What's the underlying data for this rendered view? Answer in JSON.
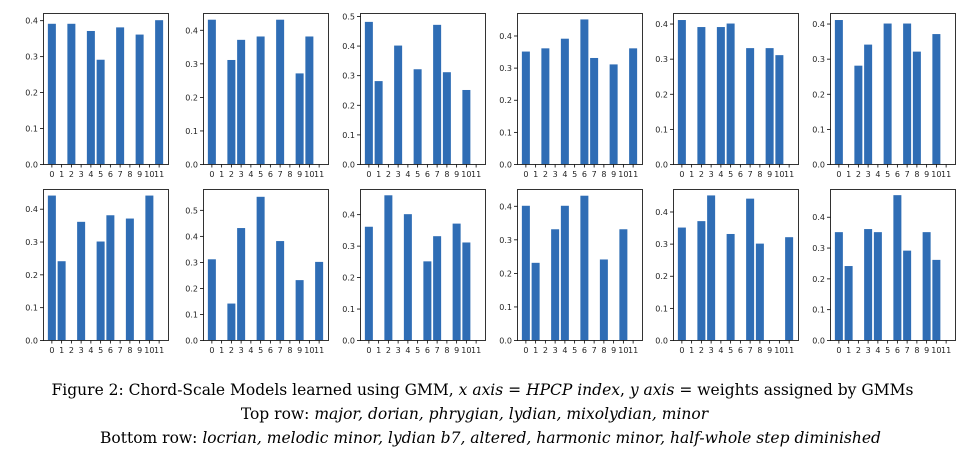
{
  "chart_data": [
    {
      "type": "bar",
      "categories": [
        "0",
        "1",
        "2",
        "3",
        "4",
        "5",
        "6",
        "7",
        "8",
        "9",
        "10",
        "11"
      ],
      "values": [
        0.39,
        0,
        0.39,
        0,
        0.37,
        0.29,
        0,
        0.38,
        0,
        0.36,
        0,
        0.4
      ],
      "ylim": [
        0,
        0.42
      ],
      "yticks": [
        "0.0",
        "0.1",
        "0.2",
        "0.3",
        "0.4"
      ],
      "grid": false
    },
    {
      "type": "bar",
      "categories": [
        "0",
        "1",
        "2",
        "3",
        "4",
        "5",
        "6",
        "7",
        "8",
        "9",
        "10",
        "11"
      ],
      "values": [
        0.43,
        0,
        0.31,
        0.37,
        0,
        0.38,
        0,
        0.43,
        0,
        0.27,
        0.38,
        0
      ],
      "ylim": [
        0,
        0.45
      ],
      "yticks": [
        "0.0",
        "0.1",
        "0.2",
        "0.3",
        "0.4"
      ],
      "grid": false
    },
    {
      "type": "bar",
      "categories": [
        "0",
        "1",
        "2",
        "3",
        "4",
        "5",
        "6",
        "7",
        "8",
        "9",
        "10",
        "11"
      ],
      "values": [
        0.48,
        0.28,
        0,
        0.4,
        0,
        0.32,
        0,
        0.47,
        0.31,
        0,
        0.25,
        0
      ],
      "ylim": [
        0,
        0.51
      ],
      "yticks": [
        "0.0",
        "0.1",
        "0.2",
        "0.3",
        "0.4",
        "0.5"
      ],
      "grid": false
    },
    {
      "type": "bar",
      "categories": [
        "0",
        "1",
        "2",
        "3",
        "4",
        "5",
        "6",
        "7",
        "8",
        "9",
        "10",
        "11"
      ],
      "values": [
        0.35,
        0,
        0.36,
        0,
        0.39,
        0,
        0.45,
        0.33,
        0,
        0.31,
        0,
        0.36
      ],
      "ylim": [
        0,
        0.47
      ],
      "yticks": [
        "0.0",
        "0.1",
        "0.2",
        "0.3",
        "0.4"
      ],
      "grid": false
    },
    {
      "type": "bar",
      "categories": [
        "0",
        "1",
        "2",
        "3",
        "4",
        "5",
        "6",
        "7",
        "8",
        "9",
        "10",
        "11"
      ],
      "values": [
        0.41,
        0,
        0.39,
        0,
        0.39,
        0.4,
        0,
        0.33,
        0,
        0.33,
        0.31,
        0
      ],
      "ylim": [
        0,
        0.43
      ],
      "yticks": [
        "0.0",
        "0.1",
        "0.2",
        "0.3",
        "0.4"
      ],
      "grid": false
    },
    {
      "type": "bar",
      "categories": [
        "0",
        "1",
        "2",
        "3",
        "4",
        "5",
        "6",
        "7",
        "8",
        "9",
        "10",
        "11"
      ],
      "values": [
        0.41,
        0,
        0.28,
        0.34,
        0,
        0.4,
        0,
        0.4,
        0.32,
        0,
        0.37,
        0
      ],
      "ylim": [
        0,
        0.43
      ],
      "yticks": [
        "0.0",
        "0.1",
        "0.2",
        "0.3",
        "0.4"
      ],
      "grid": false
    },
    {
      "type": "bar",
      "categories": [
        "0",
        "1",
        "2",
        "3",
        "4",
        "5",
        "6",
        "7",
        "8",
        "9",
        "10",
        "11"
      ],
      "values": [
        0.44,
        0.24,
        0,
        0.36,
        0,
        0.3,
        0.38,
        0,
        0.37,
        0,
        0.44,
        0
      ],
      "ylim": [
        0,
        0.46
      ],
      "yticks": [
        "0.0",
        "0.1",
        "0.2",
        "0.3",
        "0.4"
      ],
      "grid": false
    },
    {
      "type": "bar",
      "categories": [
        "0",
        "1",
        "2",
        "3",
        "4",
        "5",
        "6",
        "7",
        "8",
        "9",
        "10",
        "11"
      ],
      "values": [
        0.31,
        0,
        0.14,
        0.43,
        0,
        0.55,
        0,
        0.38,
        0,
        0.23,
        0,
        0.3
      ],
      "ylim": [
        0,
        0.58
      ],
      "yticks": [
        "0.0",
        "0.1",
        "0.2",
        "0.3",
        "0.4",
        "0.5"
      ],
      "grid": false
    },
    {
      "type": "bar",
      "categories": [
        "0",
        "1",
        "2",
        "3",
        "4",
        "5",
        "6",
        "7",
        "8",
        "9",
        "10",
        "11"
      ],
      "values": [
        0.36,
        0,
        0.46,
        0,
        0.4,
        0,
        0.25,
        0.33,
        0,
        0.37,
        0.31,
        0
      ],
      "ylim": [
        0,
        0.48
      ],
      "yticks": [
        "0.0",
        "0.1",
        "0.2",
        "0.3",
        "0.4"
      ],
      "grid": false
    },
    {
      "type": "bar",
      "categories": [
        "0",
        "1",
        "2",
        "3",
        "4",
        "5",
        "6",
        "7",
        "8",
        "9",
        "10",
        "11"
      ],
      "values": [
        0.4,
        0.23,
        0,
        0.33,
        0.4,
        0,
        0.43,
        0,
        0.24,
        0,
        0.33,
        0
      ],
      "ylim": [
        0,
        0.45
      ],
      "yticks": [
        "0.0",
        "0.1",
        "0.2",
        "0.3",
        "0.4"
      ],
      "grid": false
    },
    {
      "type": "bar",
      "categories": [
        "0",
        "1",
        "2",
        "3",
        "4",
        "5",
        "6",
        "7",
        "8",
        "9",
        "10",
        "11"
      ],
      "values": [
        0.35,
        0,
        0.37,
        0.45,
        0,
        0.33,
        0,
        0.44,
        0.3,
        0,
        0,
        0.32
      ],
      "ylim": [
        0,
        0.47
      ],
      "yticks": [
        "0.0",
        "0.1",
        "0.2",
        "0.3",
        "0.4"
      ],
      "grid": false
    },
    {
      "type": "bar",
      "categories": [
        "0",
        "1",
        "2",
        "3",
        "4",
        "5",
        "6",
        "7",
        "8",
        "9",
        "10",
        "11"
      ],
      "values": [
        0.35,
        0.24,
        0,
        0.36,
        0.35,
        0,
        0.47,
        0.29,
        0,
        0.35,
        0.26,
        0
      ],
      "ylim": [
        0,
        0.49
      ],
      "yticks": [
        "0.0",
        "0.1",
        "0.2",
        "0.3",
        "0.4"
      ],
      "grid": false
    }
  ],
  "colors": {
    "bar": "#2f6db5",
    "axis": "#000000"
  },
  "caption": {
    "line1_prefix": "Figure 2: Chord-Scale Models learned using GMM, ",
    "line1_x_var": "x axis",
    "line1_eq1": " = ",
    "line1_x_meaning": "HPCP index",
    "line1_sep": ", ",
    "line1_y_var": "y axis",
    "line1_eq2": " = weights assigned by GMMs",
    "line2_label": "Top row: ",
    "line2_list": "major, dorian, phrygian, lydian, mixolydian, minor",
    "line3_label": "Bottom row:  ",
    "line3_list": "locrian, melodic minor, lydian b7, altered, harmonic minor, half-whole step diminished"
  }
}
